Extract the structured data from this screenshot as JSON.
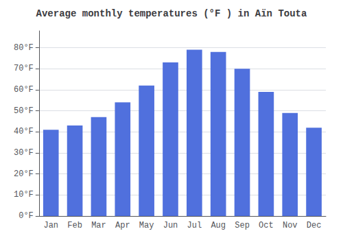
{
  "chart_data": {
    "type": "bar",
    "title": "Average monthly temperatures (°F ) in Aïn Touta",
    "categories": [
      "Jan",
      "Feb",
      "Mar",
      "Apr",
      "May",
      "Jun",
      "Jul",
      "Aug",
      "Sep",
      "Oct",
      "Nov",
      "Dec"
    ],
    "values": [
      41,
      43,
      47,
      54,
      62,
      73,
      79,
      78,
      70,
      59,
      49,
      42
    ],
    "ylim": [
      0,
      88
    ],
    "yticks": [
      {
        "value": 0,
        "label": "0°F"
      },
      {
        "value": 10,
        "label": "10°F"
      },
      {
        "value": 20,
        "label": "20°F"
      },
      {
        "value": 30,
        "label": "30°F"
      },
      {
        "value": 40,
        "label": "40°F"
      },
      {
        "value": 50,
        "label": "50°F"
      },
      {
        "value": 60,
        "label": "60°F"
      },
      {
        "value": 70,
        "label": "70°F"
      },
      {
        "value": 80,
        "label": "80°F"
      }
    ],
    "grid": true
  }
}
